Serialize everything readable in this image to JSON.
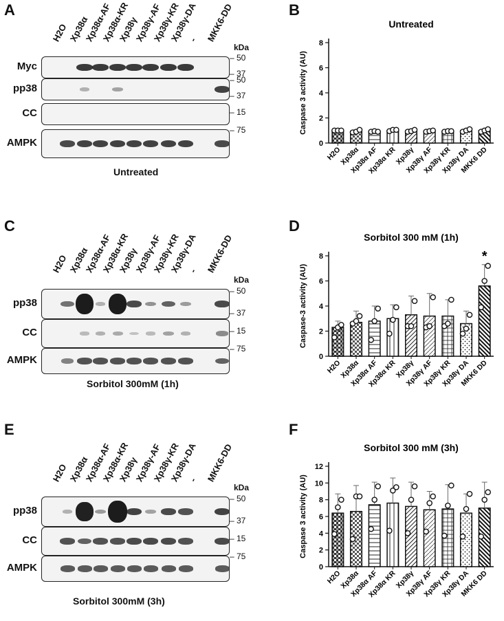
{
  "lanes": [
    "H2O",
    "Xp38α",
    "Xp38α-AF",
    "Xp38α-KR",
    "Xp38γ",
    "Xp38γ-AF",
    "Xp38γ-KR",
    "Xp38γ-DA",
    "-",
    "MKK6-DD"
  ],
  "lanes_C": [
    "H2O",
    "Xp38α",
    "Xp38α-AF",
    "Xp38α-KR",
    "Xp38γ",
    "Xp38γ-AF",
    "Xp38γ-KR",
    "Xp38γ-DA",
    "-",
    "MKK6-DD"
  ],
  "kda_label": "kDa",
  "panels": {
    "A": {
      "letter": "A",
      "caption": "Untreated",
      "rows": [
        {
          "label": "Myc",
          "markers": [
            "50",
            "37"
          ]
        },
        {
          "label": "pp38",
          "markers": [
            "50",
            "37"
          ]
        },
        {
          "label": "CC",
          "markers": [
            "15"
          ]
        },
        {
          "label": "AMPK",
          "markers": [
            "75"
          ]
        }
      ]
    },
    "C": {
      "letter": "C",
      "caption": "Sorbitol 300mM (1h)",
      "rows": [
        {
          "label": "pp38",
          "markers": [
            "50",
            "37"
          ]
        },
        {
          "label": "CC",
          "markers": [
            "15"
          ]
        },
        {
          "label": "AMPK",
          "markers": [
            "75"
          ]
        }
      ]
    },
    "E": {
      "letter": "E",
      "caption": "Sorbitol 300mM (3h)",
      "rows": [
        {
          "label": "pp38",
          "markers": [
            "50",
            "37"
          ]
        },
        {
          "label": "CC",
          "markers": [
            "15"
          ]
        },
        {
          "label": "AMPK",
          "markers": [
            "75"
          ]
        }
      ]
    },
    "B": {
      "letter": "B"
    },
    "D": {
      "letter": "D"
    },
    "F": {
      "letter": "F"
    }
  },
  "chart_data": [
    {
      "panel": "B",
      "type": "bar",
      "title": "Untreated",
      "ylabel": "Caspase 3 activity (AU)",
      "ylim": [
        0,
        8
      ],
      "yticks": [
        0,
        2,
        4,
        6,
        8
      ],
      "categories": [
        "H2O",
        "Xp38α",
        "Xp38α AF",
        "Xp38α KR",
        "Xp38γ",
        "Xp38γ AF",
        "Xp38γ KR",
        "Xp38γ DA",
        "MKK6 DD"
      ],
      "values": [
        1.0,
        0.95,
        0.92,
        1.0,
        0.98,
        0.95,
        0.95,
        1.0,
        1.0
      ],
      "errors": [
        0.05,
        0.1,
        0.08,
        0.1,
        0.12,
        0.06,
        0.1,
        0.12,
        0.12
      ],
      "points": [
        [
          1.0,
          1.0,
          1.0
        ],
        [
          0.85,
          0.9,
          1.05
        ],
        [
          0.9,
          0.95,
          0.9
        ],
        [
          0.95,
          1.05,
          1.05
        ],
        [
          0.9,
          0.95,
          1.05
        ],
        [
          0.9,
          0.95,
          1.0
        ],
        [
          0.9,
          0.95,
          0.95
        ],
        [
          0.9,
          1.0,
          1.1
        ],
        [
          0.9,
          1.0,
          1.1
        ]
      ]
    },
    {
      "panel": "D",
      "type": "bar",
      "title": "Sorbitol 300 mM (1h)",
      "ylabel": "Caspase-3 activity (AU)",
      "ylim": [
        0,
        8
      ],
      "yticks": [
        0,
        2,
        4,
        6,
        8
      ],
      "categories": [
        "H2O",
        "Xp38α",
        "Xp38α AF",
        "Xp38α KR",
        "Xp38γ",
        "Xp38γ AF",
        "Xp38γ KR",
        "Xp38γ DA",
        "MKK6 DD"
      ],
      "values": [
        2.3,
        2.7,
        2.8,
        3.0,
        3.3,
        3.2,
        3.2,
        2.6,
        5.6
      ],
      "errors": [
        0.5,
        0.9,
        1.2,
        1.1,
        1.5,
        1.8,
        1.3,
        1.0,
        1.7
      ],
      "points": [
        [
          1.5,
          2.3,
          2.5
        ],
        [
          2.6,
          2.8,
          3.2
        ],
        [
          1.3,
          2.8,
          3.8
        ],
        [
          1.8,
          2.9,
          3.9
        ],
        [
          2.4,
          2.4,
          4.4
        ],
        [
          2.3,
          2.4,
          4.7
        ],
        [
          2.4,
          2.6,
          4.5
        ],
        [
          1.8,
          2.2,
          3.3
        ],
        [
          3.9,
          6.0,
          7.2
        ]
      ],
      "annotations": [
        "*"
      ]
    },
    {
      "panel": "F",
      "type": "bar",
      "title": "Sorbitol 300 mM (3h)",
      "ylabel": "Caspase 3 activity (AU)",
      "ylim": [
        0,
        12
      ],
      "yticks": [
        0,
        2,
        4,
        6,
        8,
        10,
        12
      ],
      "categories": [
        "H2O",
        "Xp38α",
        "Xp38α AF",
        "Xp38α KR",
        "Xp38γ",
        "Xp38γ AF",
        "Xp38γ KR",
        "Xp38γ DA",
        "MKK6 DD"
      ],
      "values": [
        6.4,
        6.6,
        7.4,
        7.6,
        7.2,
        6.8,
        6.9,
        6.4,
        7.0
      ],
      "errors": [
        2.3,
        3.1,
        2.7,
        3.0,
        2.9,
        2.2,
        2.9,
        2.3,
        3.1
      ],
      "points": [
        [
          3.9,
          7.1,
          8.0
        ],
        [
          3.3,
          8.4,
          8.4
        ],
        [
          4.5,
          8.0,
          9.6
        ],
        [
          4.3,
          9.1,
          9.5
        ],
        [
          4.0,
          8.0,
          9.6
        ],
        [
          4.2,
          7.6,
          8.4
        ],
        [
          3.7,
          7.3,
          9.7
        ],
        [
          3.6,
          6.9,
          8.7
        ],
        [
          3.6,
          8.0,
          8.9
        ]
      ]
    }
  ]
}
